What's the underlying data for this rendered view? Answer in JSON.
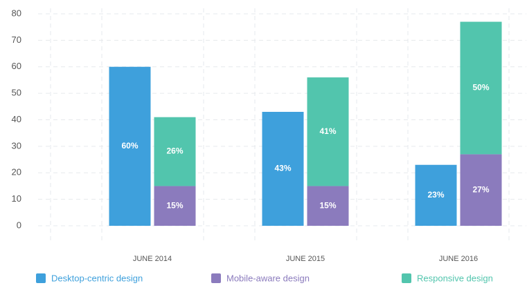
{
  "chart_data": {
    "type": "bar",
    "categories": [
      "JUNE 2014",
      "JUNE 2015",
      "JUNE 2016"
    ],
    "series": [
      {
        "name": "Desktop-centric design",
        "color": "#3ea0dc",
        "group": 0,
        "values": [
          60,
          43,
          23
        ],
        "value_labels": [
          "60%",
          "43%",
          "23%"
        ]
      },
      {
        "name": "Mobile-aware design",
        "color": "#8b7bbd",
        "group": 1,
        "values": [
          15,
          15,
          27
        ],
        "value_labels": [
          "15%",
          "15%",
          "27%"
        ]
      },
      {
        "name": "Responsive design",
        "color": "#52c5ad",
        "group": 1,
        "values": [
          26,
          41,
          50
        ],
        "value_labels": [
          "26%",
          "41%",
          "50%"
        ]
      }
    ],
    "ylim": [
      0,
      80
    ],
    "yticks": [
      0,
      10,
      20,
      30,
      40,
      50,
      60,
      70,
      80
    ],
    "grid": true,
    "legend": "bottom"
  }
}
